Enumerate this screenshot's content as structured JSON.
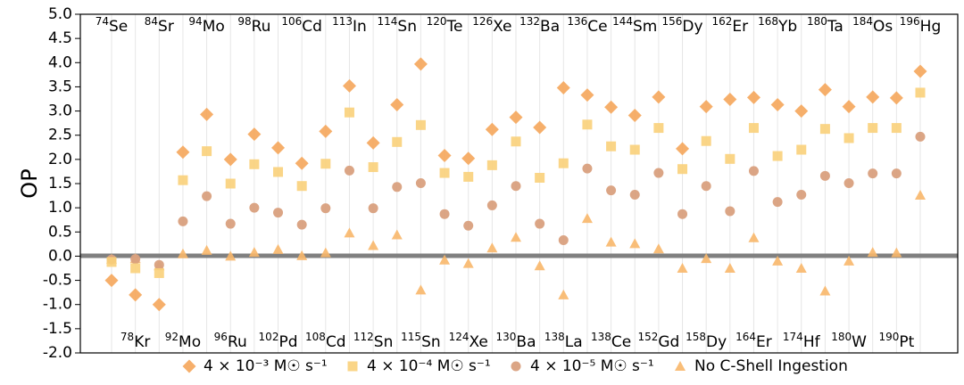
{
  "chart_data": {
    "type": "scatter",
    "ylabel": "OP",
    "ylim": [
      -2.0,
      5.0
    ],
    "yticks": [
      "-2.0",
      "-1.5",
      "-1.0",
      "-0.5",
      "0.0",
      "0.5",
      "1.0",
      "1.5",
      "2.0",
      "2.5",
      "3.0",
      "3.5",
      "4.0",
      "4.5",
      "5.0"
    ],
    "grid": "vertical",
    "legend_position": "bottom",
    "isotopes": [
      {
        "mass": "74",
        "el": "Se"
      },
      {
        "mass": "78",
        "el": "Kr"
      },
      {
        "mass": "84",
        "el": "Sr"
      },
      {
        "mass": "92",
        "el": "Mo"
      },
      {
        "mass": "94",
        "el": "Mo"
      },
      {
        "mass": "96",
        "el": "Ru"
      },
      {
        "mass": "98",
        "el": "Ru"
      },
      {
        "mass": "102",
        "el": "Pd"
      },
      {
        "mass": "106",
        "el": "Cd"
      },
      {
        "mass": "108",
        "el": "Cd"
      },
      {
        "mass": "113",
        "el": "In"
      },
      {
        "mass": "112",
        "el": "Sn"
      },
      {
        "mass": "114",
        "el": "Sn"
      },
      {
        "mass": "115",
        "el": "Sn"
      },
      {
        "mass": "120",
        "el": "Te"
      },
      {
        "mass": "124",
        "el": "Xe"
      },
      {
        "mass": "126",
        "el": "Xe"
      },
      {
        "mass": "130",
        "el": "Ba"
      },
      {
        "mass": "132",
        "el": "Ba"
      },
      {
        "mass": "138",
        "el": "La"
      },
      {
        "mass": "136",
        "el": "Ce"
      },
      {
        "mass": "138",
        "el": "Ce"
      },
      {
        "mass": "144",
        "el": "Sm"
      },
      {
        "mass": "152",
        "el": "Gd"
      },
      {
        "mass": "156",
        "el": "Dy"
      },
      {
        "mass": "158",
        "el": "Dy"
      },
      {
        "mass": "162",
        "el": "Er"
      },
      {
        "mass": "164",
        "el": "Er"
      },
      {
        "mass": "168",
        "el": "Yb"
      },
      {
        "mass": "174",
        "el": "Hf"
      },
      {
        "mass": "180",
        "el": "Ta"
      },
      {
        "mass": "180",
        "el": "W"
      },
      {
        "mass": "184",
        "el": "Os"
      },
      {
        "mass": "190",
        "el": "Pt"
      },
      {
        "mass": "196",
        "el": "Hg"
      }
    ],
    "series": [
      {
        "name": "4 × 10⁻³ M☉ s⁻¹",
        "marker": "diamond",
        "color": "#F5A65B",
        "values": [
          -0.5,
          -0.8,
          -1.0,
          2.15,
          2.93,
          2.0,
          2.52,
          2.24,
          1.92,
          2.58,
          3.52,
          2.34,
          3.13,
          3.97,
          2.08,
          2.02,
          2.62,
          2.87,
          2.66,
          3.48,
          3.33,
          3.08,
          2.91,
          3.29,
          2.22,
          3.09,
          3.24,
          3.28,
          3.13,
          3.0,
          3.44,
          3.09,
          3.29,
          3.27,
          3.82
        ]
      },
      {
        "name": "4 × 10⁻⁴ M☉ s⁻¹",
        "marker": "square",
        "color": "#FAD07A",
        "values": [
          -0.12,
          -0.25,
          -0.35,
          1.57,
          2.17,
          1.5,
          1.9,
          1.74,
          1.45,
          1.91,
          2.97,
          1.84,
          2.36,
          2.71,
          1.72,
          1.64,
          1.88,
          2.37,
          1.62,
          1.92,
          2.72,
          2.27,
          2.2,
          2.65,
          1.8,
          2.38,
          2.01,
          2.65,
          2.07,
          2.2,
          2.63,
          2.44,
          2.65,
          2.65,
          3.38
        ]
      },
      {
        "name": "4 × 10⁻⁵ M☉ s⁻¹",
        "marker": "circle",
        "color": "#D9A07E",
        "values": [
          -0.07,
          -0.06,
          -0.18,
          0.72,
          1.24,
          0.67,
          1.0,
          0.9,
          0.65,
          0.99,
          1.77,
          0.99,
          1.43,
          1.51,
          0.87,
          0.63,
          1.05,
          1.45,
          0.67,
          0.33,
          1.81,
          1.36,
          1.27,
          1.72,
          0.87,
          1.45,
          0.93,
          1.76,
          1.12,
          1.27,
          1.66,
          1.51,
          1.71,
          1.71,
          2.47
        ]
      },
      {
        "name": "No C-Shell Ingestion",
        "marker": "triangle",
        "color": "#F8B76A",
        "values": [
          -0.06,
          -0.05,
          -0.2,
          0.05,
          0.12,
          0.0,
          0.08,
          0.14,
          0.01,
          0.07,
          0.48,
          0.22,
          0.44,
          -0.7,
          -0.08,
          -0.15,
          0.17,
          0.39,
          -0.2,
          -0.8,
          0.78,
          0.29,
          0.26,
          0.15,
          -0.25,
          -0.05,
          -0.25,
          0.38,
          -0.1,
          -0.25,
          -0.72,
          -0.1,
          0.08,
          0.07,
          1.26
        ]
      }
    ]
  }
}
